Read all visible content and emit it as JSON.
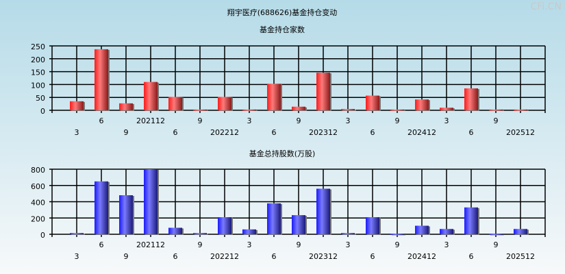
{
  "title": "翔宇医疗(688626)基金持仓变动",
  "watermark": "CFi.CN",
  "chart_data": [
    {
      "type": "bar",
      "title": "基金持仓家数",
      "categories": [
        "3",
        "6",
        "9",
        "202112",
        "6",
        "9",
        "202212",
        "3",
        "6",
        "9",
        "202312",
        "3",
        "6",
        "9",
        "202412",
        "3",
        "6",
        "9",
        "202512"
      ],
      "values": [
        35,
        237,
        27,
        110,
        52,
        3,
        52,
        3,
        103,
        14,
        146,
        5,
        57,
        3,
        42,
        10,
        85,
        3,
        3
      ],
      "ylim": [
        0,
        250
      ],
      "yticks": [
        0,
        50,
        100,
        150,
        200,
        250
      ],
      "grid": true,
      "color": "#e8202a"
    },
    {
      "type": "bar",
      "title": "基金总持股数(万股)",
      "categories": [
        "3",
        "6",
        "9",
        "202112",
        "6",
        "9",
        "202212",
        "3",
        "6",
        "9",
        "202312",
        "3",
        "6",
        "9",
        "202412",
        "3",
        "6",
        "9",
        "202512"
      ],
      "values": [
        15,
        650,
        480,
        800,
        80,
        15,
        210,
        60,
        380,
        235,
        560,
        15,
        210,
        5,
        105,
        65,
        330,
        5,
        65
      ],
      "ylim": [
        0,
        800
      ],
      "yticks": [
        0,
        200,
        400,
        600,
        800
      ],
      "grid": true,
      "color": "#2a2ae8"
    }
  ]
}
